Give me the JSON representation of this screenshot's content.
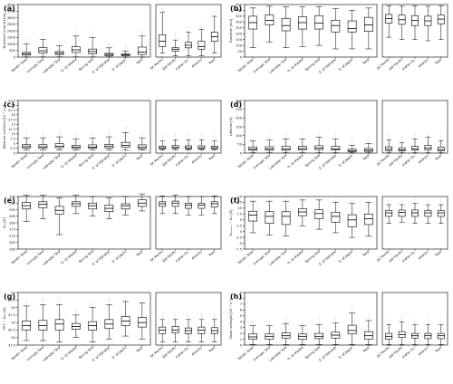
{
  "figure": {
    "region_groups": {
      "left": [
        "Nordic Seas",
        "Irminger Sea",
        "Labrador Sea",
        "G. of Alaska",
        "Bering Sea",
        "S. of Okhotsk",
        "S. of Japan",
        "Rest"
      ],
      "right": [
        "SE Pacific",
        "SW Pacific",
        "Indian Oc.",
        "Atlantic",
        "Rest"
      ]
    }
  },
  "chart_data": [
    {
      "type": "boxplot",
      "letter": "(a)",
      "ylabel": "Distance to land [km]",
      "ylim": [
        0,
        4000
      ],
      "yticks": [
        0,
        500,
        1000,
        1500,
        2000,
        2500,
        3000,
        3500,
        4000
      ],
      "left": [
        [
          0,
          150,
          250,
          360,
          1000
        ],
        [
          10,
          300,
          480,
          720,
          1350
        ],
        [
          10,
          200,
          290,
          420,
          850
        ],
        [
          10,
          350,
          550,
          780,
          1600
        ],
        [
          10,
          260,
          420,
          610,
          1500
        ],
        [
          10,
          100,
          200,
          280,
          700
        ],
        [
          0,
          100,
          180,
          240,
          450
        ],
        [
          0,
          200,
          380,
          760,
          1600
        ]
      ],
      "right": [
        [
          300,
          800,
          1200,
          1700,
          3400
        ],
        [
          100,
          450,
          600,
          720,
          1300
        ],
        [
          100,
          700,
          900,
          1120,
          1900
        ],
        [
          100,
          600,
          800,
          1200,
          2100
        ],
        [
          300,
          1200,
          1550,
          1900,
          3100
        ]
      ]
    },
    {
      "type": "boxplot",
      "letter": "(b)",
      "ylabel": "Diameter [km]",
      "ylim": [
        0,
        450
      ],
      "yticks": [
        0,
        50,
        100,
        150,
        200,
        250,
        300,
        350,
        400,
        450
      ],
      "left": [
        [
          80,
          240,
          295,
          350,
          420
        ],
        [
          130,
          275,
          315,
          360,
          435
        ],
        [
          80,
          225,
          270,
          330,
          430
        ],
        [
          90,
          240,
          295,
          345,
          430
        ],
        [
          100,
          240,
          290,
          355,
          430
        ],
        [
          70,
          215,
          270,
          315,
          415
        ],
        [
          70,
          215,
          245,
          310,
          400
        ],
        [
          70,
          220,
          275,
          340,
          420
        ]
      ],
      "right": [
        [
          170,
          290,
          330,
          365,
          440
        ],
        [
          150,
          280,
          320,
          360,
          435
        ],
        [
          150,
          270,
          315,
          355,
          440
        ],
        [
          140,
          270,
          310,
          350,
          435
        ],
        [
          150,
          285,
          325,
          360,
          440
        ]
      ]
    },
    {
      "type": "boxplot",
      "letter": "(c)",
      "ylabel": "Relative vorticity [10⁻⁵ s⁻¹]",
      "ylim": [
        0,
        27.5
      ],
      "yticks": [
        0,
        2.5,
        5,
        7.5,
        10,
        12.5,
        15,
        17.5,
        20,
        22.5,
        25,
        27.5
      ],
      "left": [
        [
          1.5,
          2.6,
          3.4,
          4.4,
          8.0
        ],
        [
          1.5,
          2.6,
          3.3,
          4.4,
          8.0
        ],
        [
          1.5,
          2.8,
          3.6,
          4.9,
          8.5
        ],
        [
          1.5,
          2.4,
          3.1,
          4.1,
          7.3
        ],
        [
          1.5,
          2.5,
          3.1,
          4.3,
          7.8
        ],
        [
          1.5,
          2.7,
          3.5,
          4.6,
          8.5
        ],
        [
          1.5,
          3.0,
          4.0,
          5.6,
          10.8
        ],
        [
          1.5,
          2.3,
          3.0,
          4.3,
          8.0
        ]
      ],
      "right": [
        [
          1.5,
          2.2,
          2.8,
          3.6,
          6.3
        ],
        [
          1.5,
          2.4,
          2.9,
          3.9,
          6.9
        ],
        [
          1.5,
          2.2,
          2.8,
          3.8,
          7.0
        ],
        [
          1.5,
          2.2,
          2.8,
          3.8,
          7.0
        ],
        [
          1.5,
          2.2,
          2.8,
          3.6,
          6.3
        ]
      ]
    },
    {
      "type": "boxplot",
      "letter": "(d)",
      "ylabel": "Lifetime [h]",
      "ylim": [
        0,
        300
      ],
      "yticks": [
        0,
        50,
        100,
        150,
        200,
        250,
        300
      ],
      "left": [
        [
          2,
          16,
          22,
          35,
          70
        ],
        [
          2,
          16,
          24,
          36,
          74
        ],
        [
          2,
          16,
          24,
          38,
          80
        ],
        [
          2,
          18,
          26,
          38,
          80
        ],
        [
          2,
          20,
          28,
          42,
          90
        ],
        [
          2,
          18,
          24,
          38,
          80
        ],
        [
          2,
          8,
          14,
          22,
          45
        ],
        [
          2,
          10,
          16,
          26,
          55
        ]
      ],
      "right": [
        [
          2,
          14,
          22,
          36,
          75
        ],
        [
          2,
          12,
          18,
          30,
          60
        ],
        [
          2,
          16,
          24,
          38,
          80
        ],
        [
          2,
          18,
          28,
          44,
          90
        ],
        [
          2,
          12,
          20,
          34,
          70
        ]
      ]
    },
    {
      "type": "boxplot",
      "letter": "(e)",
      "ylabel": "θₑ₃ [K]",
      "ylim": [
        260,
        300
      ],
      "yticks": [
        260,
        265,
        270,
        275,
        280,
        285,
        290,
        295,
        300
      ],
      "left": [
        [
          281,
          290.5,
          293,
          295.5,
          301
        ],
        [
          283,
          291.5,
          294,
          296,
          301
        ],
        [
          271,
          286.5,
          289.5,
          292.5,
          299
        ],
        [
          287,
          292.5,
          294.5,
          296,
          301
        ],
        [
          285,
          290.5,
          293,
          295,
          300
        ],
        [
          283,
          288.5,
          291,
          293.5,
          299
        ],
        [
          286,
          290.5,
          293,
          294.5,
          300
        ],
        [
          289,
          292.5,
          295,
          297.5,
          302
        ]
      ],
      "right": [
        [
          287,
          292.5,
          294.5,
          296,
          300.5
        ],
        [
          287,
          292.5,
          295,
          296.5,
          301
        ],
        [
          286,
          291,
          293.5,
          295,
          300
        ],
        [
          286,
          291,
          293.5,
          295,
          300
        ],
        [
          287,
          292,
          294.5,
          296,
          300.5
        ]
      ]
    },
    {
      "type": "boxplot",
      "letter": "(f)",
      "ylabel": "θₛₑₐₛₗₑᵥₗ − θₑ₃ [K]",
      "ylim": [
        -7.5,
        15
      ],
      "yticks": [
        -7.5,
        -5,
        -2.5,
        0,
        2.5,
        5,
        7.5,
        10,
        12.5,
        15
      ],
      "left": [
        [
          -0.5,
          4.5,
          7.0,
          8.7,
          13.0
        ],
        [
          -1.5,
          3.5,
          6.5,
          8.5,
          13.0
        ],
        [
          -2.0,
          3.0,
          6.5,
          8.5,
          13.0
        ],
        [
          2.5,
          6.8,
          8.4,
          9.8,
          13.5
        ],
        [
          1.0,
          5.5,
          7.7,
          9.3,
          13.5
        ],
        [
          -0.5,
          4.0,
          6.5,
          8.3,
          12.5
        ],
        [
          -2.5,
          2.0,
          5.0,
          7.2,
          12.0
        ],
        [
          -2.0,
          3.0,
          5.5,
          7.5,
          12.5
        ]
      ],
      "right": [
        [
          3.5,
          6.5,
          8.0,
          9.0,
          11.5
        ],
        [
          4.0,
          6.5,
          8.2,
          9.2,
          11.5
        ],
        [
          3.5,
          6.5,
          8.0,
          9.2,
          12.0
        ],
        [
          3.5,
          6.5,
          8.0,
          9.0,
          11.5
        ],
        [
          3.5,
          6.5,
          8.0,
          9.0,
          11.5
        ]
      ]
    },
    {
      "type": "boxplot",
      "letter": "(g)",
      "ylabel": "SST − θ₅₀₀ [K]",
      "ylim": [
        37.5,
        55
      ],
      "yticks": [
        37.5,
        40,
        42.5,
        45,
        47.5,
        50,
        52.5,
        55
      ],
      "left": [
        [
          39.0,
          42.5,
          44.0,
          45.5,
          50.5
        ],
        [
          39.0,
          42.5,
          44.0,
          45.7,
          51.0
        ],
        [
          38.5,
          42.5,
          44.5,
          46.0,
          51.0
        ],
        [
          40.0,
          42.8,
          43.7,
          44.7,
          47.5
        ],
        [
          38.5,
          42.5,
          44.0,
          45.3,
          50.0
        ],
        [
          39.5,
          43.0,
          44.5,
          46.0,
          51.0
        ],
        [
          40.5,
          44.0,
          45.5,
          47.0,
          52.0
        ],
        [
          39.5,
          43.5,
          45.0,
          46.7,
          51.5
        ]
      ],
      "right": [
        [
          38.5,
          41.3,
          42.5,
          43.5,
          46.0
        ],
        [
          38.5,
          41.5,
          42.5,
          43.7,
          46.0
        ],
        [
          38.5,
          41.3,
          42.3,
          43.2,
          46.0
        ],
        [
          38.5,
          41.3,
          42.5,
          43.5,
          46.0
        ],
        [
          38.5,
          41.3,
          42.3,
          43.3,
          46.0
        ]
      ]
    },
    {
      "type": "boxplot",
      "letter": "(h)",
      "ylabel": "Shear strength [10⁻³ s⁻¹]",
      "ylim": [
        0,
        9
      ],
      "yticks": [
        0,
        1,
        2,
        3,
        4,
        5,
        6,
        7,
        8,
        9
      ],
      "left": [
        [
          0.1,
          1.0,
          1.4,
          1.9,
          3.3
        ],
        [
          0.1,
          1.0,
          1.5,
          1.9,
          3.3
        ],
        [
          0.1,
          1.2,
          1.6,
          2.1,
          3.7
        ],
        [
          0.1,
          1.0,
          1.5,
          1.9,
          3.3
        ],
        [
          0.1,
          1.1,
          1.5,
          2.0,
          3.5
        ],
        [
          0.1,
          1.2,
          1.7,
          2.2,
          3.8
        ],
        [
          0.1,
          1.9,
          2.5,
          3.4,
          5.5
        ],
        [
          0.1,
          1.0,
          1.6,
          2.3,
          4.2
        ]
      ],
      "right": [
        [
          0.1,
          1.0,
          1.5,
          2.0,
          3.5
        ],
        [
          0.1,
          1.3,
          1.8,
          2.3,
          4.0
        ],
        [
          0.1,
          1.2,
          1.6,
          2.0,
          3.5
        ],
        [
          0.1,
          1.1,
          1.6,
          2.0,
          3.5
        ],
        [
          0.1,
          1.1,
          1.6,
          2.0,
          3.5
        ]
      ]
    }
  ]
}
